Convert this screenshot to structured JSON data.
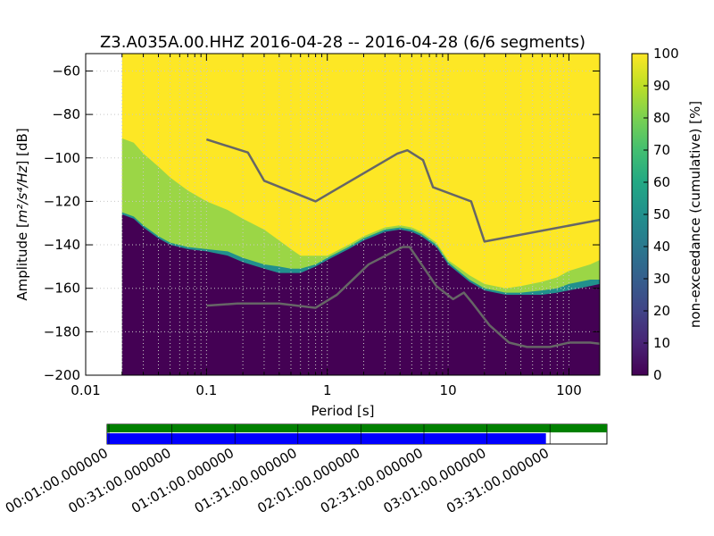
{
  "chart_data": {
    "type": "heatmap",
    "title": "Z3.A035A.00.HHZ   2016-04-28 -- 2016-04-28  (6/6 segments)",
    "xlabel": "Period [s]",
    "ylabel_prefix": "Amplitude [",
    "ylabel_math": "m²/s⁴/Hz",
    "ylabel_suffix": "] [dB]",
    "x_scale": "log",
    "xlim": [
      0.01,
      180
    ],
    "ylim": [
      -200,
      -52
    ],
    "x_tick_labels": [
      "0.01",
      "0.1",
      "1",
      "10",
      "100"
    ],
    "x_tick_values": [
      0.01,
      0.1,
      1,
      10,
      100
    ],
    "y_tick_values": [
      -60,
      -80,
      -100,
      -120,
      -140,
      -160,
      -180,
      -200
    ],
    "y_tick_labels": [
      "−60",
      "−80",
      "−100",
      "−120",
      "−140",
      "−160",
      "−180",
      "−200"
    ],
    "grid": true,
    "colorbar": {
      "label": "non-exceedance (cumulative) [%]",
      "range": [
        0,
        100
      ],
      "tick_values": [
        0,
        10,
        20,
        30,
        40,
        50,
        60,
        70,
        80,
        90,
        100
      ],
      "tick_labels": [
        "0",
        "10",
        "20",
        "30",
        "40",
        "50",
        "60",
        "70",
        "80",
        "90",
        "100"
      ],
      "colormap": "viridis"
    },
    "pdf_boundaries": {
      "period": [
        0.02,
        0.025,
        0.03,
        0.04,
        0.05,
        0.07,
        0.1,
        0.15,
        0.2,
        0.3,
        0.4,
        0.5,
        0.6,
        0.8,
        1.0,
        1.5,
        2,
        3,
        4,
        5,
        6,
        8,
        10,
        15,
        20,
        30,
        40,
        60,
        80,
        100,
        150,
        180
      ],
      "band_low_10pct": [
        -126,
        -128,
        -132,
        -137,
        -140,
        -142,
        -143,
        -145,
        -148,
        -151,
        -153,
        -153,
        -153,
        -150,
        -147,
        -142,
        -138,
        -134,
        -133,
        -134,
        -136,
        -141,
        -149,
        -157,
        -161,
        -163,
        -163,
        -163,
        -162,
        -161,
        -159,
        -158
      ],
      "band_high_20pct": [
        -125,
        -127,
        -131,
        -136,
        -139,
        -141,
        -142,
        -143,
        -146,
        -149,
        -150,
        -151,
        -151,
        -149,
        -146,
        -141,
        -137,
        -133,
        -132,
        -133,
        -135,
        -140,
        -148,
        -156,
        -160,
        -162,
        -162,
        -161,
        -160,
        -158,
        -156,
        -156
      ],
      "band_high_80pct": [
        -91,
        -93,
        -98,
        -104,
        -109,
        -115,
        -120,
        -124,
        -128,
        -133,
        -138,
        -142,
        -145,
        -145,
        -145,
        -140,
        -136,
        -132,
        -131,
        -132,
        -134,
        -139,
        -147,
        -154,
        -158,
        -160,
        -159,
        -157,
        -155,
        -152,
        -149,
        -147
      ]
    },
    "series": [
      {
        "period": [
          0.1,
          0.22,
          0.3,
          0.8,
          3.8,
          4.6,
          6.2,
          7.5,
          15.5,
          20,
          180
        ],
        "values": [
          -91.5,
          -97.5,
          -110.5,
          -120,
          -98,
          -96.5,
          -101,
          -113.5,
          -120,
          -138.5,
          -128.5
        ]
      },
      {
        "period": [
          0.1,
          0.18,
          0.4,
          0.8,
          1.2,
          2.2,
          4.2,
          4.8,
          6.2,
          8,
          11,
          13.5,
          16,
          22,
          32,
          45,
          70,
          100,
          150,
          180
        ],
        "values": [
          -168,
          -167,
          -167,
          -169,
          -163,
          -149,
          -141,
          -141,
          -150,
          -159,
          -165,
          -162,
          -167,
          -177,
          -185,
          -187,
          -187,
          -185,
          -185,
          -185.5
        ]
      }
    ],
    "timeline": {
      "tick_labels": [
        "00:01:00.000000",
        "00:31:00.000000",
        "01:01:00.000000",
        "01:31:00.000000",
        "02:01:00.000000",
        "02:31:00.000000",
        "03:01:00.000000",
        "03:31:00.000000"
      ],
      "segments_fraction": [
        0.0,
        1.0
      ],
      "data_fraction": [
        0.0,
        0.878
      ],
      "segment_color": "#008000",
      "data_color": "#0000ff"
    }
  },
  "colors": {
    "line": "#666666",
    "background_empty": "#ffffff",
    "band_low": "#440154",
    "band_mid": "#9bd646",
    "band_high": "#fde725",
    "band_edge": "#21908d",
    "grid": "#c8c8c8"
  }
}
